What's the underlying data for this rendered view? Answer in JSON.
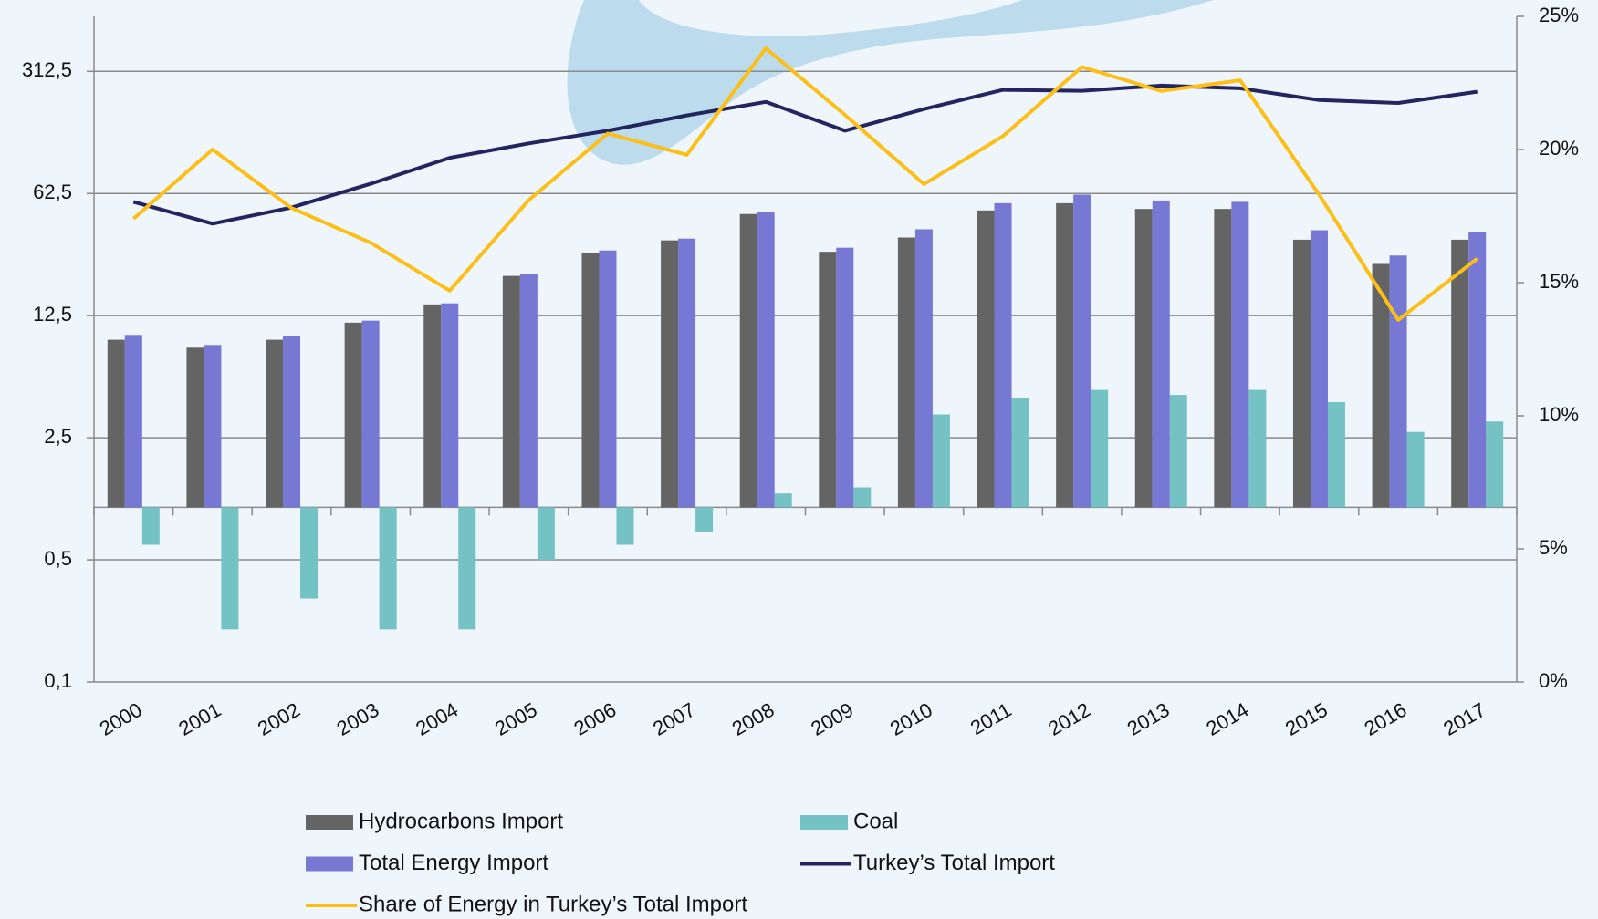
{
  "chart_data": {
    "type": "bar",
    "categories": [
      "2000",
      "2001",
      "2002",
      "2003",
      "2004",
      "2005",
      "2006",
      "2007",
      "2008",
      "2009",
      "2010",
      "2011",
      "2012",
      "2013",
      "2014",
      "2015",
      "2016",
      "2017"
    ],
    "log_scale": true,
    "grid": true,
    "ylim": [
      0.1,
      645
    ],
    "yticks": [
      {
        "value": 0.1,
        "label": "0,1"
      },
      {
        "value": 0.5,
        "label": "0,5"
      },
      {
        "value": 2.5,
        "label": "2,5"
      },
      {
        "value": 12.5,
        "label": "12,5"
      },
      {
        "value": 62.5,
        "label": "62,5"
      },
      {
        "value": 312.5,
        "label": "312,5"
      }
    ],
    "y2lim": [
      0,
      25
    ],
    "y2ticks": [
      {
        "value": 0,
        "label": "0%"
      },
      {
        "value": 5,
        "label": "5%"
      },
      {
        "value": 10,
        "label": "10%"
      },
      {
        "value": 15,
        "label": "15%"
      },
      {
        "value": 20,
        "label": "20%"
      },
      {
        "value": 25,
        "label": "25%"
      }
    ],
    "series": [
      {
        "name": "Hydrocarbons Import",
        "type": "bar",
        "color": "#646464",
        "values": [
          9.1,
          8.2,
          9.1,
          11.4,
          14.5,
          21.1,
          28.7,
          33.7,
          47.7,
          29,
          35,
          50,
          55,
          51,
          51,
          34,
          24.7,
          34
        ]
      },
      {
        "name": "Coal",
        "type": "bar",
        "color": "#74c2c4",
        "values": [
          0.61,
          0.2,
          0.3,
          0.2,
          0.2,
          0.5,
          0.61,
          0.72,
          1.2,
          1.3,
          3.4,
          4.2,
          4.7,
          4.4,
          4.7,
          4.0,
          2.7,
          3.1
        ]
      },
      {
        "name": "Total Energy Import",
        "type": "bar",
        "color": "#7777d4",
        "values": [
          9.7,
          8.5,
          9.5,
          11.7,
          14.7,
          21.6,
          29.5,
          34.5,
          49,
          30.6,
          39,
          55,
          61.6,
          57,
          56,
          38.5,
          27.6,
          37.5
        ]
      },
      {
        "name": "Turkey’s Total Import",
        "type": "line",
        "color": "#232560",
        "values": [
          56,
          42,
          52,
          71,
          100,
          121,
          143,
          175,
          209,
          143,
          190,
          245,
          242,
          259,
          250,
          214,
          206,
          239
        ]
      },
      {
        "name": "Share of Energy in Turkey’s Total Import",
        "type": "line",
        "axis": "y2",
        "color": "#fcbf18",
        "values": [
          17.4,
          20.0,
          17.8,
          16.5,
          14.7,
          18.1,
          20.6,
          19.8,
          23.8,
          21.3,
          18.7,
          20.5,
          23.1,
          22.2,
          22.6,
          18.3,
          13.6,
          15.9
        ]
      }
    ]
  }
}
